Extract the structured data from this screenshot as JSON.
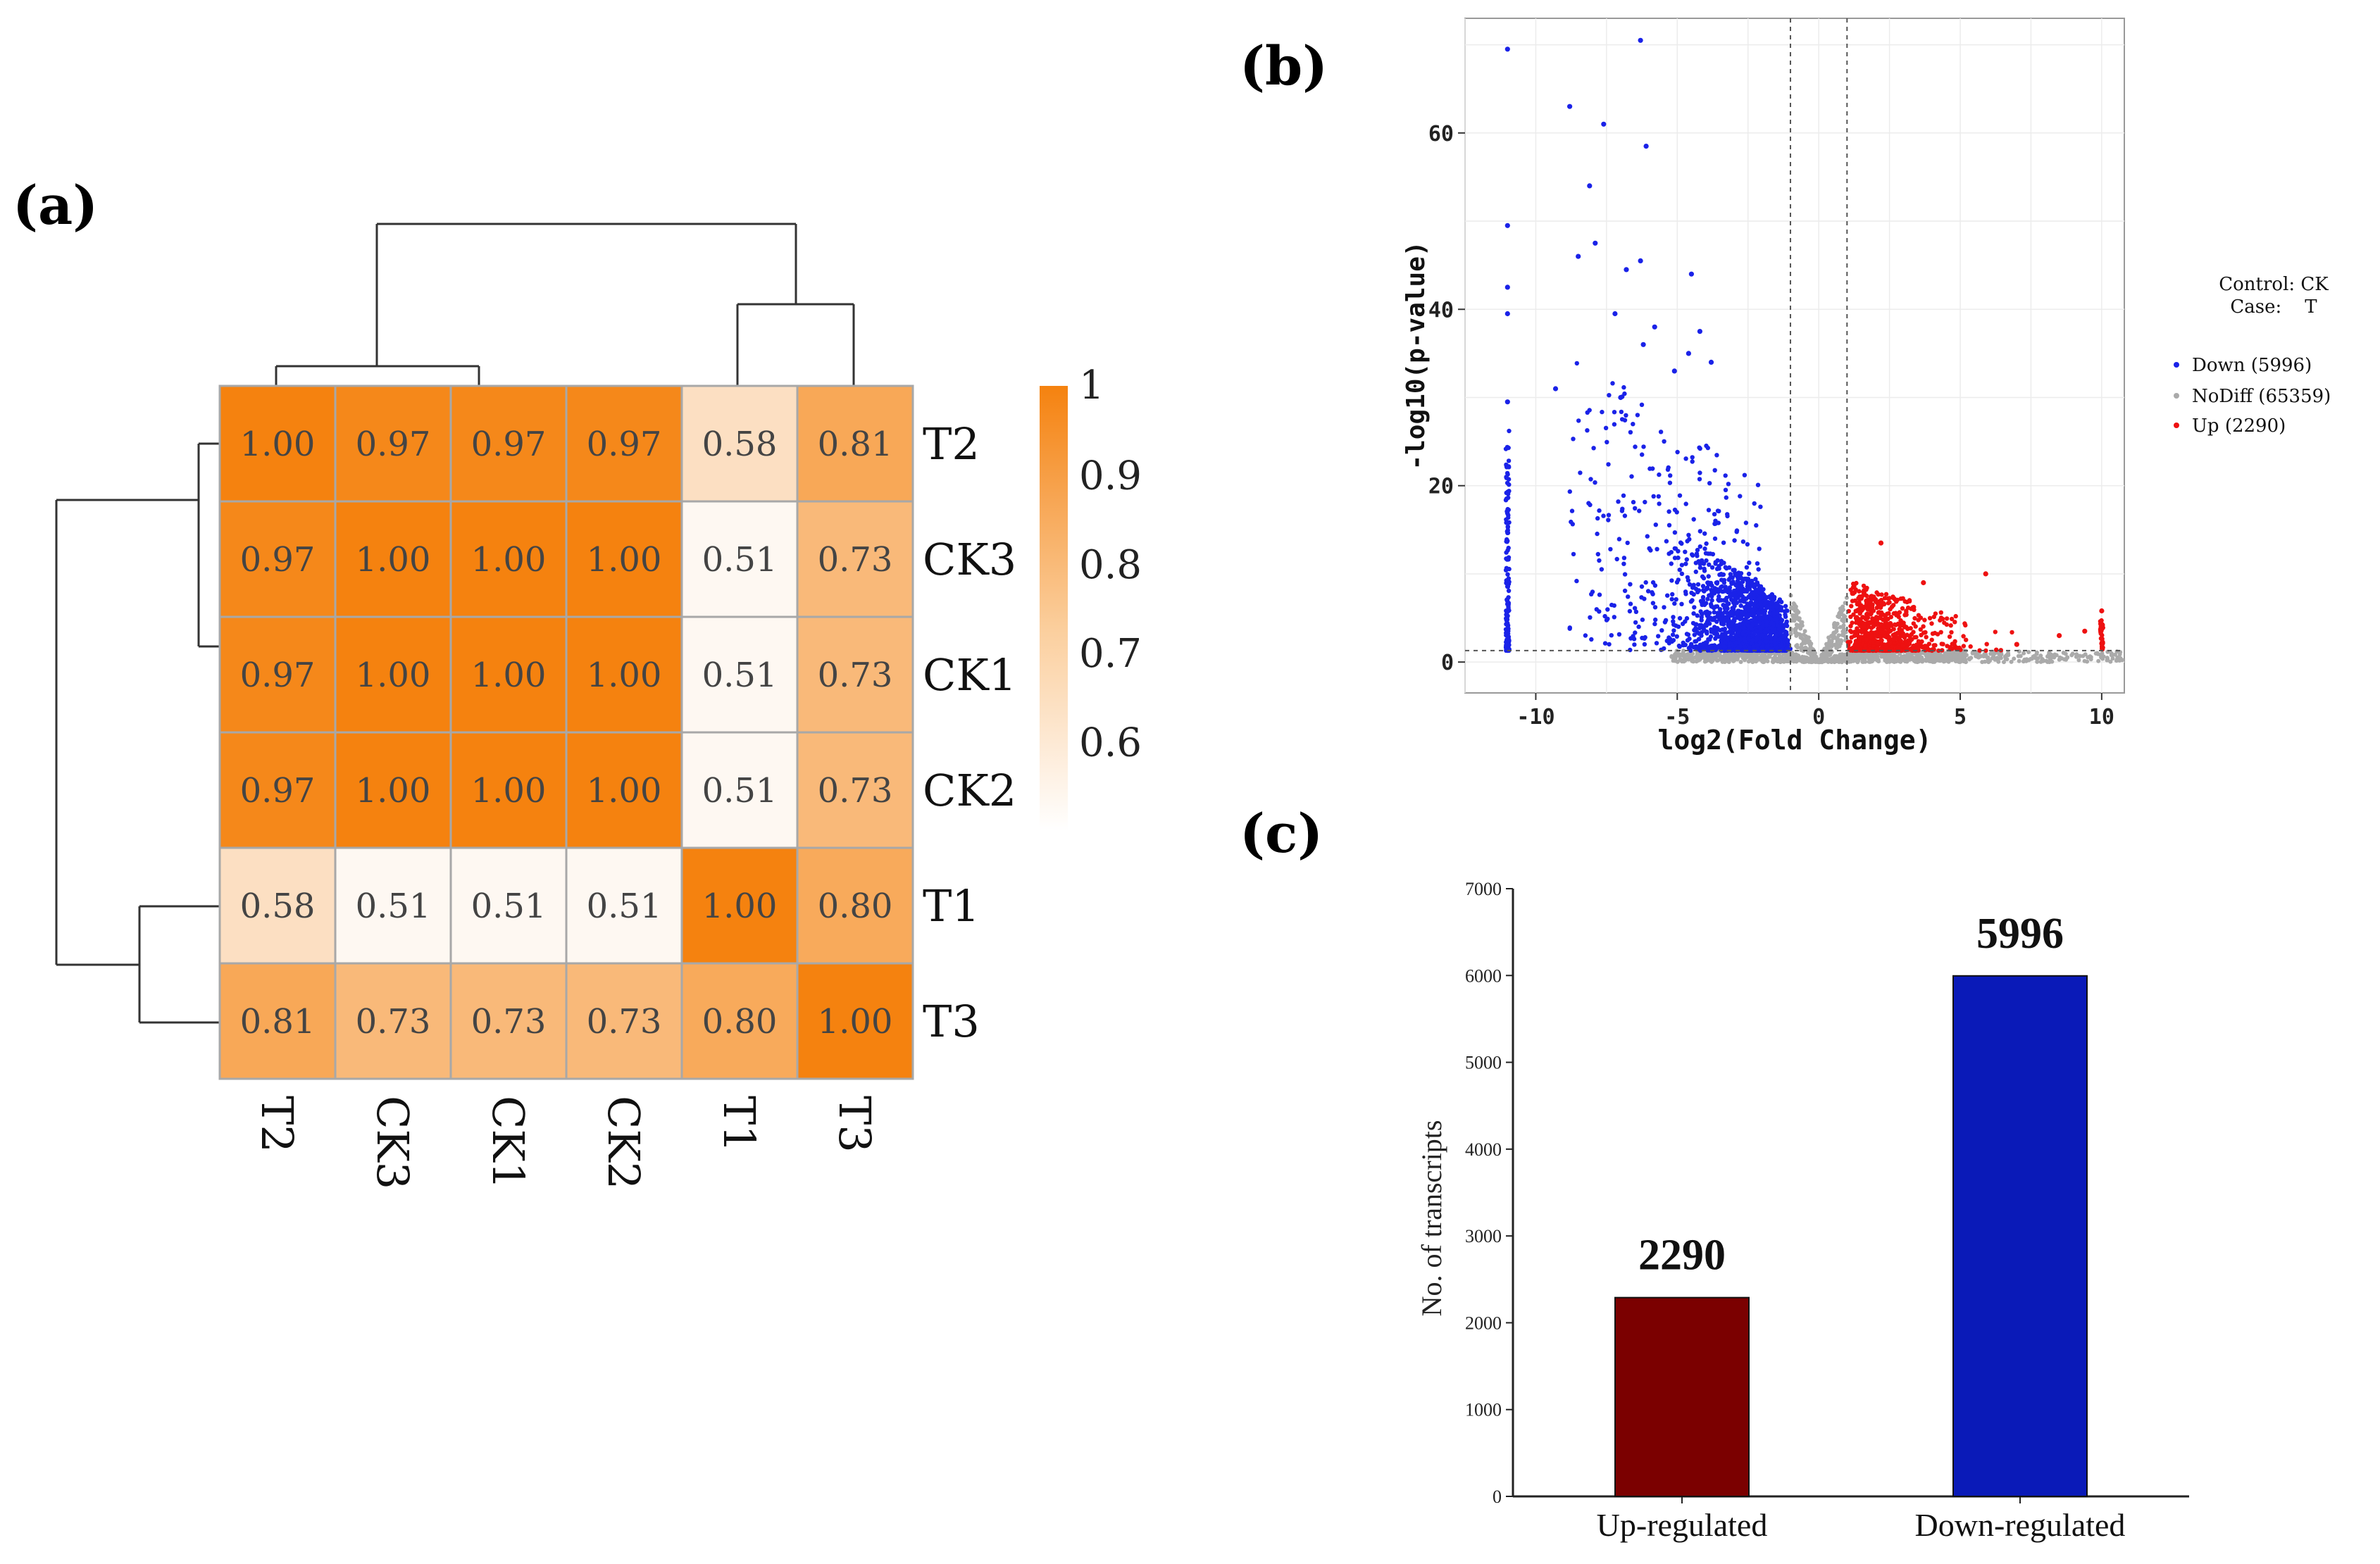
{
  "panel_labels": {
    "a": "(a)",
    "b": "(b)",
    "c": "(c)"
  },
  "colors": {
    "heat_high": "#f5820f",
    "heat_low": "#ffffff",
    "cell_border": "#a8a8a8",
    "down": "#1a22e8",
    "nodiff": "#aaaaaa",
    "up": "#ee1111",
    "bar_up": "#7b0000",
    "bar_down": "#0a1ab8"
  },
  "chart_data": [
    {
      "id": "a",
      "type": "heatmap",
      "title": "",
      "rows": [
        "T2",
        "CK3",
        "CK1",
        "CK2",
        "T1",
        "T3"
      ],
      "columns": [
        "T2",
        "CK3",
        "CK1",
        "CK2",
        "T1",
        "T3"
      ],
      "values": [
        [
          1.0,
          0.97,
          0.97,
          0.97,
          0.58,
          0.81
        ],
        [
          0.97,
          1.0,
          1.0,
          1.0,
          0.51,
          0.73
        ],
        [
          0.97,
          1.0,
          1.0,
          1.0,
          0.51,
          0.73
        ],
        [
          0.97,
          1.0,
          1.0,
          1.0,
          0.51,
          0.73
        ],
        [
          0.58,
          0.51,
          0.51,
          0.51,
          1.0,
          0.8
        ],
        [
          0.81,
          0.73,
          0.73,
          0.73,
          0.8,
          1.0
        ]
      ],
      "labels": [
        [
          "1.00",
          "0.97",
          "0.97",
          "0.97",
          "0.58",
          "0.81"
        ],
        [
          "0.97",
          "1.00",
          "1.00",
          "1.00",
          "0.51",
          "0.73"
        ],
        [
          "0.97",
          "1.00",
          "1.00",
          "1.00",
          "0.51",
          "0.73"
        ],
        [
          "0.97",
          "1.00",
          "1.00",
          "1.00",
          "0.51",
          "0.73"
        ],
        [
          "0.58",
          "0.51",
          "0.51",
          "0.51",
          "1.00",
          "0.80"
        ],
        [
          "0.81",
          "0.73",
          "0.73",
          "0.73",
          "0.80",
          "1.00"
        ]
      ],
      "colorbar": {
        "min": 0.5,
        "max": 1.0,
        "ticks": [
          "1",
          "0.9",
          "0.8",
          "0.7",
          "0.6"
        ],
        "tick_values": [
          1.0,
          0.9,
          0.8,
          0.7,
          0.6
        ]
      },
      "dendrogram": "hierarchical clustering on rows (left) and columns (top)"
    },
    {
      "id": "b",
      "type": "scatter",
      "title": "",
      "xlabel": "log2(Fold Change)",
      "ylabel": "-log10(p-value)",
      "xlim": [
        -12.5,
        10.8
      ],
      "ylim": [
        -3.5,
        73
      ],
      "xticks": [
        -10,
        -5,
        0,
        5,
        10
      ],
      "xtick_labels": [
        "-10",
        "-5",
        "0",
        "5",
        "10"
      ],
      "yticks": [
        0,
        20,
        40,
        60
      ],
      "ytick_labels": [
        "0",
        "20",
        "40",
        "60"
      ],
      "grid": true,
      "thresholds": {
        "x": [
          -1,
          1
        ],
        "y": 1.3
      },
      "legend_title": [
        "Control: CK",
        "Case:    T"
      ],
      "legend_position": "right",
      "series": [
        {
          "name": "Down (5996)",
          "color": "#1a22e8",
          "count": 5996
        },
        {
          "name": "NoDiff (65359)",
          "color": "#aaaaaa",
          "count": 65359
        },
        {
          "name": "Up (2290)",
          "color": "#ee1111",
          "count": 2290
        }
      ],
      "highlighted_points": [
        {
          "x": -11,
          "y": 69.5
        },
        {
          "x": -6.3,
          "y": 70.5
        },
        {
          "x": -8.8,
          "y": 63
        },
        {
          "x": -7.6,
          "y": 61
        },
        {
          "x": -6.1,
          "y": 58.5
        },
        {
          "x": -8.1,
          "y": 54
        },
        {
          "x": -11,
          "y": 49.5
        },
        {
          "x": -8.5,
          "y": 46
        },
        {
          "x": -7.9,
          "y": 47.5
        },
        {
          "x": -6.8,
          "y": 44.5
        },
        {
          "x": -6.3,
          "y": 45.5
        },
        {
          "x": -4.5,
          "y": 44
        },
        {
          "x": -11,
          "y": 42.5
        },
        {
          "x": -11,
          "y": 39.5
        },
        {
          "x": -7.2,
          "y": 39.5
        },
        {
          "x": -5.8,
          "y": 38
        },
        {
          "x": -4.2,
          "y": 37.5
        },
        {
          "x": -6.2,
          "y": 36
        },
        {
          "x": -4.6,
          "y": 35
        },
        {
          "x": -5.1,
          "y": 33
        },
        {
          "x": -3.8,
          "y": 34
        },
        {
          "x": -9.3,
          "y": 31
        },
        {
          "x": -7.0,
          "y": 30
        },
        {
          "x": -11,
          "y": 29.5
        },
        {
          "x": 2.2,
          "y": 13.5
        },
        {
          "x": 5.9,
          "y": 10
        },
        {
          "x": 3.7,
          "y": 9
        },
        {
          "x": 10,
          "y": 5.8
        },
        {
          "x": 9.4,
          "y": 3.5
        },
        {
          "x": 8.5,
          "y": 3
        },
        {
          "x": 7.0,
          "y": 2
        }
      ]
    },
    {
      "id": "c",
      "type": "bar",
      "title": "",
      "xlabel": "",
      "ylabel": "No. of transcripts",
      "categories": [
        "Up-regulated",
        "Down-regulated"
      ],
      "values": [
        2290,
        5996
      ],
      "value_labels": [
        "2290",
        "5996"
      ],
      "colors": [
        "#7b0000",
        "#0a1ab8"
      ],
      "ylim": [
        0,
        7000
      ],
      "yticks": [
        0,
        1000,
        2000,
        3000,
        4000,
        5000,
        6000,
        7000
      ],
      "ytick_labels": [
        "0",
        "1000",
        "2000",
        "3000",
        "4000",
        "5000",
        "6000",
        "7000"
      ],
      "grid": false
    }
  ]
}
